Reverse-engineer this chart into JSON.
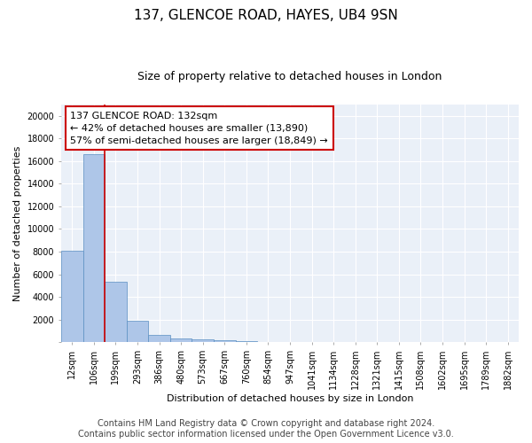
{
  "title1": "137, GLENCOE ROAD, HAYES, UB4 9SN",
  "title2": "Size of property relative to detached houses in London",
  "xlabel": "Distribution of detached houses by size in London",
  "ylabel": "Number of detached properties",
  "bar_labels": [
    "12sqm",
    "106sqm",
    "199sqm",
    "293sqm",
    "386sqm",
    "480sqm",
    "573sqm",
    "667sqm",
    "760sqm",
    "854sqm",
    "947sqm",
    "1041sqm",
    "1134sqm",
    "1228sqm",
    "1321sqm",
    "1415sqm",
    "1508sqm",
    "1602sqm",
    "1695sqm",
    "1789sqm",
    "1882sqm"
  ],
  "bar_values": [
    8050,
    16600,
    5350,
    1870,
    680,
    340,
    220,
    190,
    140,
    0,
    0,
    0,
    0,
    0,
    0,
    0,
    0,
    0,
    0,
    0,
    0
  ],
  "bar_color": "#aec6e8",
  "bar_edge_color": "#5a8fc2",
  "vline_x": 1.5,
  "vline_color": "#cc0000",
  "annotation_text": "137 GLENCOE ROAD: 132sqm\n← 42% of detached houses are smaller (13,890)\n57% of semi-detached houses are larger (18,849) →",
  "annotation_box_color": "#ffffff",
  "annotation_box_edge": "#cc0000",
  "ylim": [
    0,
    21000
  ],
  "yticks": [
    0,
    2000,
    4000,
    6000,
    8000,
    10000,
    12000,
    14000,
    16000,
    18000,
    20000
  ],
  "footer_line1": "Contains HM Land Registry data © Crown copyright and database right 2024.",
  "footer_line2": "Contains public sector information licensed under the Open Government Licence v3.0.",
  "plot_bg_color": "#eaf0f8",
  "grid_color": "#ffffff",
  "title1_fontsize": 11,
  "title2_fontsize": 9,
  "annot_fontsize": 8,
  "tick_fontsize": 7,
  "ylabel_fontsize": 8,
  "xlabel_fontsize": 8,
  "footer_fontsize": 7
}
